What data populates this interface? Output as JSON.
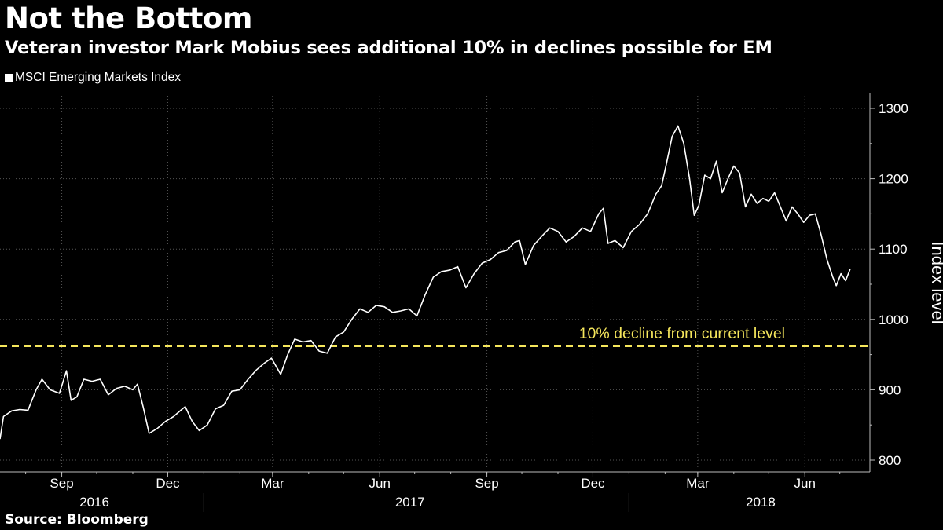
{
  "header": {
    "title": "Not the Bottom",
    "subtitle": "Veteran investor Mark Mobius sees additional 10% in declines possible for EM"
  },
  "legend": {
    "label": "MSCI Emerging Markets Index"
  },
  "footer": {
    "source": "Source: Bloomberg"
  },
  "colors": {
    "background": "#000000",
    "series": "#ffffff",
    "reference_line": "#f5e65c",
    "grid": "#555555"
  },
  "chart_data": {
    "type": "line",
    "ylabel": "Index level",
    "ylim": [
      790,
      1320
    ],
    "yticks": [
      800,
      900,
      1000,
      1100,
      1200,
      1300
    ],
    "xlim": [
      "2016-07-10",
      "2018-07-12"
    ],
    "month_ticks": [
      {
        "date": "2016-09-01",
        "label": "Sep"
      },
      {
        "date": "2016-12-01",
        "label": "Dec"
      },
      {
        "date": "2017-03-01",
        "label": "Mar"
      },
      {
        "date": "2017-06-01",
        "label": "Jun"
      },
      {
        "date": "2017-09-01",
        "label": "Sep"
      },
      {
        "date": "2017-12-01",
        "label": "Dec"
      },
      {
        "date": "2018-03-01",
        "label": "Mar"
      },
      {
        "date": "2018-06-01",
        "label": "Jun"
      }
    ],
    "year_labels": [
      {
        "label": "2016",
        "date": "2016-09-29"
      },
      {
        "label": "2017",
        "date": "2017-06-27"
      },
      {
        "label": "2018",
        "date": "2018-04-24"
      }
    ],
    "year_dividers": [
      "2017-01-01",
      "2018-01-01"
    ],
    "grid": true,
    "reference_line": {
      "value": 962,
      "label": "10% decline from current level"
    },
    "series": [
      {
        "name": "MSCI Emerging Markets Index",
        "points": [
          [
            "2016-07-10",
            830
          ],
          [
            "2016-07-13",
            862
          ],
          [
            "2016-07-20",
            870
          ],
          [
            "2016-07-27",
            872
          ],
          [
            "2016-08-03",
            871
          ],
          [
            "2016-08-10",
            900
          ],
          [
            "2016-08-15",
            915
          ],
          [
            "2016-08-22",
            900
          ],
          [
            "2016-08-30",
            895
          ],
          [
            "2016-09-05",
            927
          ],
          [
            "2016-09-09",
            885
          ],
          [
            "2016-09-14",
            890
          ],
          [
            "2016-09-20",
            915
          ],
          [
            "2016-09-27",
            912
          ],
          [
            "2016-10-04",
            915
          ],
          [
            "2016-10-11",
            893
          ],
          [
            "2016-10-18",
            902
          ],
          [
            "2016-10-25",
            905
          ],
          [
            "2016-11-01",
            900
          ],
          [
            "2016-11-05",
            908
          ],
          [
            "2016-11-10",
            875
          ],
          [
            "2016-11-15",
            838
          ],
          [
            "2016-11-22",
            845
          ],
          [
            "2016-11-29",
            855
          ],
          [
            "2016-12-06",
            862
          ],
          [
            "2016-12-13",
            872
          ],
          [
            "2016-12-16",
            876
          ],
          [
            "2016-12-22",
            855
          ],
          [
            "2016-12-28",
            842
          ],
          [
            "2017-01-04",
            850
          ],
          [
            "2017-01-11",
            873
          ],
          [
            "2017-01-18",
            878
          ],
          [
            "2017-01-25",
            898
          ],
          [
            "2017-02-01",
            900
          ],
          [
            "2017-02-08",
            915
          ],
          [
            "2017-02-15",
            928
          ],
          [
            "2017-02-22",
            938
          ],
          [
            "2017-02-28",
            945
          ],
          [
            "2017-03-08",
            922
          ],
          [
            "2017-03-14",
            950
          ],
          [
            "2017-03-20",
            972
          ],
          [
            "2017-03-27",
            968
          ],
          [
            "2017-04-03",
            970
          ],
          [
            "2017-04-10",
            955
          ],
          [
            "2017-04-17",
            952
          ],
          [
            "2017-04-24",
            975
          ],
          [
            "2017-05-01",
            982
          ],
          [
            "2017-05-08",
            1000
          ],
          [
            "2017-05-15",
            1015
          ],
          [
            "2017-05-22",
            1010
          ],
          [
            "2017-05-29",
            1020
          ],
          [
            "2017-06-05",
            1018
          ],
          [
            "2017-06-12",
            1010
          ],
          [
            "2017-06-19",
            1012
          ],
          [
            "2017-06-26",
            1015
          ],
          [
            "2017-07-03",
            1005
          ],
          [
            "2017-07-10",
            1035
          ],
          [
            "2017-07-17",
            1060
          ],
          [
            "2017-07-24",
            1068
          ],
          [
            "2017-07-31",
            1070
          ],
          [
            "2017-08-07",
            1075
          ],
          [
            "2017-08-14",
            1045
          ],
          [
            "2017-08-21",
            1065
          ],
          [
            "2017-08-28",
            1080
          ],
          [
            "2017-09-04",
            1085
          ],
          [
            "2017-09-11",
            1095
          ],
          [
            "2017-09-18",
            1098
          ],
          [
            "2017-09-25",
            1110
          ],
          [
            "2017-09-29",
            1112
          ],
          [
            "2017-10-04",
            1078
          ],
          [
            "2017-10-11",
            1105
          ],
          [
            "2017-10-18",
            1118
          ],
          [
            "2017-10-25",
            1130
          ],
          [
            "2017-11-01",
            1125
          ],
          [
            "2017-11-08",
            1110
          ],
          [
            "2017-11-15",
            1118
          ],
          [
            "2017-11-22",
            1130
          ],
          [
            "2017-11-29",
            1125
          ],
          [
            "2017-12-06",
            1150
          ],
          [
            "2017-12-10",
            1158
          ],
          [
            "2017-12-14",
            1108
          ],
          [
            "2017-12-20",
            1112
          ],
          [
            "2017-12-27",
            1102
          ],
          [
            "2018-01-03",
            1125
          ],
          [
            "2018-01-10",
            1135
          ],
          [
            "2018-01-17",
            1150
          ],
          [
            "2018-01-24",
            1178
          ],
          [
            "2018-01-29",
            1190
          ],
          [
            "2018-02-02",
            1220
          ],
          [
            "2018-02-07",
            1260
          ],
          [
            "2018-02-12",
            1275
          ],
          [
            "2018-02-17",
            1250
          ],
          [
            "2018-02-22",
            1200
          ],
          [
            "2018-02-26",
            1148
          ],
          [
            "2018-03-02",
            1162
          ],
          [
            "2018-03-07",
            1205
          ],
          [
            "2018-03-12",
            1200
          ],
          [
            "2018-03-17",
            1225
          ],
          [
            "2018-03-22",
            1180
          ],
          [
            "2018-03-27",
            1200
          ],
          [
            "2018-04-01",
            1218
          ],
          [
            "2018-04-06",
            1208
          ],
          [
            "2018-04-11",
            1160
          ],
          [
            "2018-04-16",
            1178
          ],
          [
            "2018-04-21",
            1165
          ],
          [
            "2018-04-26",
            1172
          ],
          [
            "2018-05-01",
            1168
          ],
          [
            "2018-05-06",
            1180
          ],
          [
            "2018-05-11",
            1160
          ],
          [
            "2018-05-16",
            1140
          ],
          [
            "2018-05-21",
            1160
          ],
          [
            "2018-05-26",
            1150
          ],
          [
            "2018-05-31",
            1138
          ],
          [
            "2018-06-05",
            1148
          ],
          [
            "2018-06-10",
            1150
          ],
          [
            "2018-06-15",
            1120
          ],
          [
            "2018-06-20",
            1085
          ],
          [
            "2018-06-25",
            1060
          ],
          [
            "2018-06-28",
            1048
          ],
          [
            "2018-07-02",
            1065
          ],
          [
            "2018-07-06",
            1055
          ],
          [
            "2018-07-10",
            1072
          ]
        ]
      }
    ]
  }
}
